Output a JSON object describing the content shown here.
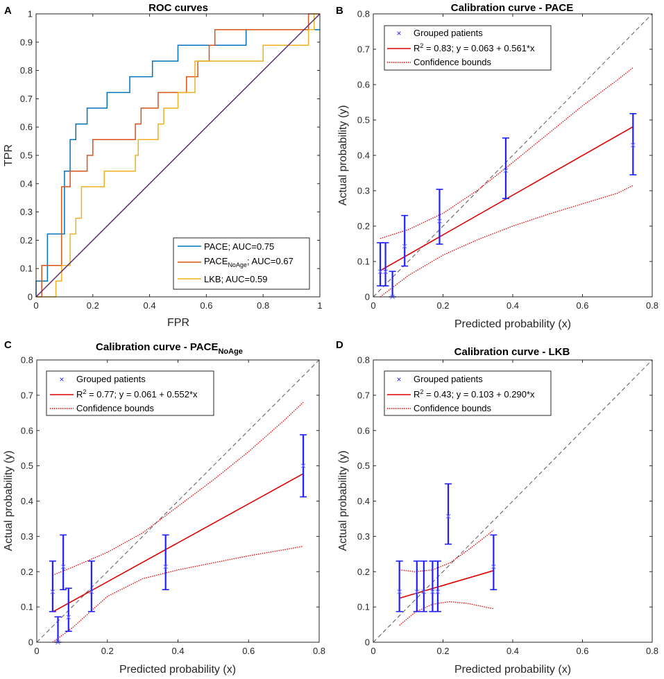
{
  "colors": {
    "pace": "#0072bd",
    "pace_noage": "#d95319",
    "lkb": "#edb120",
    "diagonal_roc": "#5b2a7a",
    "points": "#2020ff",
    "fit": "#e00000",
    "bounds": "#e00000",
    "identity": "#555555"
  },
  "chart_data": [
    {
      "type": "line",
      "panel_label": "A",
      "title": "ROC curves",
      "xlabel": "FPR",
      "ylabel": "TPR",
      "xlim": [
        0,
        1
      ],
      "ylim": [
        0,
        1
      ],
      "xticks": [
        "0",
        "0.2",
        "0.4",
        "0.6",
        "0.8",
        "1"
      ],
      "yticks": [
        "0",
        "0.1",
        "0.2",
        "0.3",
        "0.4",
        "0.5",
        "0.6",
        "0.7",
        "0.8",
        "0.9",
        "1"
      ],
      "legend_position": "bottom-right",
      "series": [
        {
          "name": "PACE; AUC=0.75",
          "name_main": "PACE",
          "name_sub": "",
          "name_rest": "; AUC=0.75",
          "color_key": "pace",
          "x": [
            0,
            0,
            0.04,
            0.04,
            0.1,
            0.1,
            0.12,
            0.12,
            0.14,
            0.14,
            0.18,
            0.18,
            0.25,
            0.25,
            0.33,
            0.33,
            0.41,
            0.41,
            0.5,
            0.5,
            0.74,
            0.74,
            1
          ],
          "y": [
            0,
            0.056,
            0.056,
            0.222,
            0.222,
            0.444,
            0.444,
            0.556,
            0.556,
            0.611,
            0.611,
            0.667,
            0.667,
            0.722,
            0.722,
            0.778,
            0.778,
            0.833,
            0.833,
            0.889,
            0.889,
            0.944,
            0.944
          ]
        },
        {
          "name": "PACE_NoAge; AUC=0.67",
          "name_main": "PACE",
          "name_sub": "NoAge",
          "name_rest": "; AUC=0.67",
          "color_key": "pace_noage",
          "x": [
            0,
            0.02,
            0.02,
            0.09,
            0.09,
            0.12,
            0.12,
            0.18,
            0.18,
            0.2,
            0.2,
            0.35,
            0.35,
            0.37,
            0.37,
            0.43,
            0.43,
            0.53,
            0.53,
            0.57,
            0.57,
            0.61,
            0.61,
            0.63,
            0.63,
            0.96,
            0.96,
            1
          ],
          "y": [
            0,
            0,
            0.111,
            0.111,
            0.389,
            0.389,
            0.444,
            0.444,
            0.5,
            0.5,
            0.556,
            0.556,
            0.611,
            0.611,
            0.667,
            0.667,
            0.722,
            0.722,
            0.778,
            0.778,
            0.833,
            0.833,
            0.889,
            0.889,
            0.944,
            0.944,
            1,
            1
          ]
        },
        {
          "name": "LKB; AUC=0.59",
          "name_main": "LKB",
          "name_sub": "",
          "name_rest": "; AUC=0.59",
          "color_key": "lkb",
          "x": [
            0,
            0.07,
            0.07,
            0.09,
            0.09,
            0.12,
            0.12,
            0.14,
            0.14,
            0.16,
            0.16,
            0.24,
            0.24,
            0.35,
            0.35,
            0.36,
            0.36,
            0.43,
            0.43,
            0.45,
            0.45,
            0.5,
            0.5,
            0.56,
            0.56,
            0.8,
            0.8,
            0.96,
            0.96,
            0.98,
            0.98,
            1
          ],
          "y": [
            0,
            0,
            0.056,
            0.056,
            0.111,
            0.111,
            0.222,
            0.222,
            0.278,
            0.278,
            0.389,
            0.389,
            0.444,
            0.444,
            0.5,
            0.5,
            0.556,
            0.556,
            0.611,
            0.611,
            0.667,
            0.667,
            0.722,
            0.722,
            0.833,
            0.833,
            0.889,
            0.889,
            0.944,
            0.944,
            1,
            1
          ]
        },
        {
          "name": "Chance",
          "color_key": "diagonal_roc",
          "x": [
            0,
            1
          ],
          "y": [
            0,
            1
          ],
          "in_legend": false
        }
      ]
    },
    {
      "type": "scatter",
      "panel_label": "B",
      "title": "Calibration curve - PACE",
      "title_main": "Calibration curve - PACE",
      "title_sub": "",
      "xlabel": "Predicted probability (x)",
      "ylabel": "Actual probability (y)",
      "xlim": [
        0,
        0.8
      ],
      "ylim": [
        0,
        0.8
      ],
      "xticks": [
        "0",
        "0.2",
        "0.4",
        "0.6",
        "0.8"
      ],
      "yticks": [
        "0",
        "0.1",
        "0.2",
        "0.3",
        "0.4",
        "0.5",
        "0.6",
        "0.7",
        "0.8"
      ],
      "legend_position": "top-left",
      "legend": {
        "points": "Grouped patients",
        "r2": "= 0.83; y = 0.063 + 0.561*x",
        "bounds": "Confidence bounds"
      },
      "points": [
        {
          "x": 0.02,
          "y": 0.071,
          "lo": 0.031,
          "hi": 0.153
        },
        {
          "x": 0.035,
          "y": 0.071,
          "lo": 0.031,
          "hi": 0.153
        },
        {
          "x": 0.055,
          "y": 0.0,
          "lo": 0.0,
          "hi": 0.072
        },
        {
          "x": 0.09,
          "y": 0.143,
          "lo": 0.087,
          "hi": 0.23
        },
        {
          "x": 0.19,
          "y": 0.214,
          "lo": 0.149,
          "hi": 0.304
        },
        {
          "x": 0.38,
          "y": 0.357,
          "lo": 0.278,
          "hi": 0.449
        },
        {
          "x": 0.745,
          "y": 0.429,
          "lo": 0.345,
          "hi": 0.518
        }
      ],
      "fit": {
        "intercept": 0.063,
        "slope": 0.561,
        "x_range": [
          0.02,
          0.745
        ]
      },
      "bounds_upper": {
        "x": [
          0.02,
          0.1,
          0.2,
          0.3,
          0.4,
          0.5,
          0.6,
          0.7,
          0.745
        ],
        "y": [
          0.165,
          0.19,
          0.236,
          0.302,
          0.38,
          0.46,
          0.54,
          0.613,
          0.648
        ]
      },
      "bounds_lower": {
        "x": [
          0.02,
          0.1,
          0.2,
          0.3,
          0.4,
          0.5,
          0.6,
          0.7,
          0.745
        ],
        "y": [
          0.0,
          0.06,
          0.118,
          0.162,
          0.2,
          0.233,
          0.263,
          0.293,
          0.315
        ]
      }
    },
    {
      "type": "scatter",
      "panel_label": "C",
      "title": "Calibration curve - PACE_NoAge",
      "title_main": "Calibration curve - PACE",
      "title_sub": "NoAge",
      "xlabel": "Predicted probability (x)",
      "ylabel": "Actual probability (y)",
      "xlim": [
        0,
        0.8
      ],
      "ylim": [
        0,
        0.8
      ],
      "xticks": [
        "0",
        "0.2",
        "0.4",
        "0.6",
        "0.8"
      ],
      "yticks": [
        "0",
        "0.1",
        "0.2",
        "0.3",
        "0.4",
        "0.5",
        "0.6",
        "0.7",
        "0.8"
      ],
      "legend_position": "top-left",
      "legend": {
        "points": "Grouped patients",
        "r2": "= 0.77; y = 0.061 + 0.552*x",
        "bounds": "Confidence bounds"
      },
      "points": [
        {
          "x": 0.045,
          "y": 0.143,
          "lo": 0.087,
          "hi": 0.23
        },
        {
          "x": 0.06,
          "y": 0.0,
          "lo": 0.0,
          "hi": 0.072
        },
        {
          "x": 0.075,
          "y": 0.214,
          "lo": 0.149,
          "hi": 0.304
        },
        {
          "x": 0.09,
          "y": 0.071,
          "lo": 0.031,
          "hi": 0.153
        },
        {
          "x": 0.155,
          "y": 0.143,
          "lo": 0.087,
          "hi": 0.23
        },
        {
          "x": 0.365,
          "y": 0.214,
          "lo": 0.149,
          "hi": 0.304
        },
        {
          "x": 0.755,
          "y": 0.5,
          "lo": 0.412,
          "hi": 0.588
        }
      ],
      "fit": {
        "intercept": 0.061,
        "slope": 0.552,
        "x_range": [
          0.045,
          0.755
        ]
      },
      "bounds_upper": {
        "x": [
          0.045,
          0.1,
          0.2,
          0.3,
          0.4,
          0.5,
          0.6,
          0.7,
          0.755
        ],
        "y": [
          0.19,
          0.212,
          0.255,
          0.31,
          0.385,
          0.46,
          0.54,
          0.628,
          0.68
        ]
      },
      "bounds_lower": {
        "x": [
          0.045,
          0.1,
          0.2,
          0.3,
          0.4,
          0.5,
          0.6,
          0.7,
          0.755
        ],
        "y": [
          0.0,
          0.04,
          0.13,
          0.18,
          0.205,
          0.225,
          0.245,
          0.262,
          0.272
        ]
      }
    },
    {
      "type": "scatter",
      "panel_label": "D",
      "title": "Calibration curve - LKB",
      "title_main": "Calibration curve - LKB",
      "title_sub": "",
      "xlabel": "Predicted probability (x)",
      "ylabel": "Actual probability (y)",
      "xlim": [
        0,
        0.8
      ],
      "ylim": [
        0,
        0.8
      ],
      "xticks": [
        "0",
        "0.2",
        "0.4",
        "0.6",
        "0.8"
      ],
      "yticks": [
        "0",
        "0.1",
        "0.2",
        "0.3",
        "0.4",
        "0.5",
        "0.6",
        "0.7",
        "0.8"
      ],
      "legend_position": "top-left",
      "legend": {
        "points": "Grouped patients",
        "r2": "= 0.43; y = 0.103 + 0.290*x",
        "bounds": "Confidence bounds"
      },
      "points": [
        {
          "x": 0.075,
          "y": 0.143,
          "lo": 0.087,
          "hi": 0.23
        },
        {
          "x": 0.125,
          "y": 0.143,
          "lo": 0.087,
          "hi": 0.23
        },
        {
          "x": 0.145,
          "y": 0.143,
          "lo": 0.087,
          "hi": 0.23
        },
        {
          "x": 0.17,
          "y": 0.143,
          "lo": 0.087,
          "hi": 0.23
        },
        {
          "x": 0.185,
          "y": 0.143,
          "lo": 0.087,
          "hi": 0.23
        },
        {
          "x": 0.215,
          "y": 0.357,
          "lo": 0.278,
          "hi": 0.449
        },
        {
          "x": 0.345,
          "y": 0.214,
          "lo": 0.149,
          "hi": 0.304
        }
      ],
      "fit": {
        "intercept": 0.103,
        "slope": 0.29,
        "x_range": [
          0.075,
          0.345
        ]
      },
      "bounds_upper": {
        "x": [
          0.075,
          0.12,
          0.17,
          0.22,
          0.27,
          0.32,
          0.345
        ],
        "y": [
          0.205,
          0.2,
          0.205,
          0.225,
          0.26,
          0.298,
          0.318
        ]
      },
      "bounds_lower": {
        "x": [
          0.075,
          0.12,
          0.17,
          0.22,
          0.27,
          0.32,
          0.345
        ],
        "y": [
          0.048,
          0.085,
          0.108,
          0.115,
          0.11,
          0.1,
          0.095
        ]
      }
    }
  ]
}
